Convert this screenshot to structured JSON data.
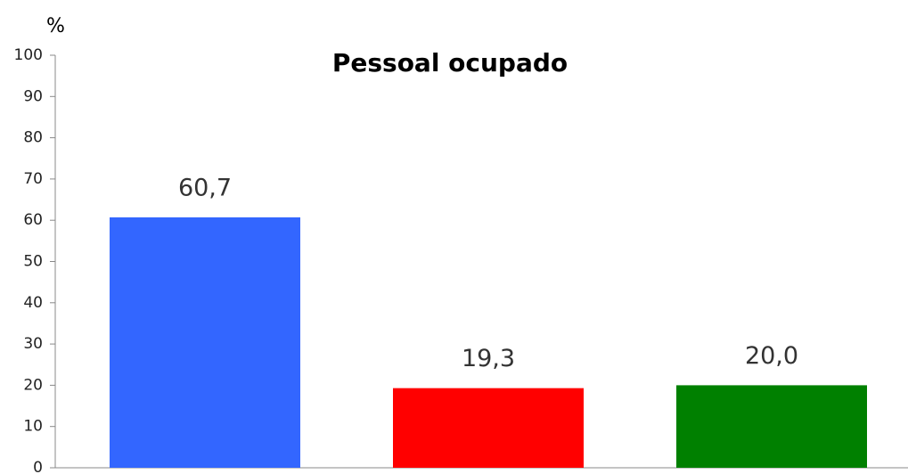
{
  "chart_data": {
    "type": "bar",
    "title": "Pessoal ocupado",
    "y_label": "%",
    "categories": [
      null,
      null,
      null
    ],
    "values": [
      60.7,
      19.3,
      20.0
    ],
    "value_labels": [
      "60,7",
      "19,3",
      "20,0"
    ],
    "colors": [
      "#3366ff",
      "#ff0000",
      "#008000"
    ],
    "ylim": [
      0,
      100
    ],
    "yticks": [
      0,
      10,
      20,
      30,
      40,
      50,
      60,
      70,
      80,
      90,
      100
    ],
    "grid": false
  }
}
